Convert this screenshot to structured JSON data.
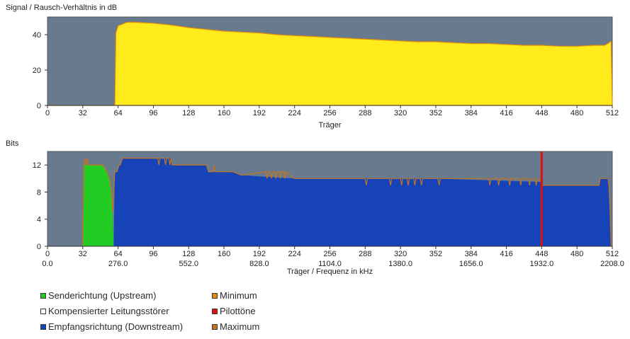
{
  "chart_data": [
    {
      "type": "area",
      "title": "Signal / Rausch-Verhältnis in dB",
      "xlabel": "Träger",
      "ylabel": "",
      "xlim": [
        0,
        512
      ],
      "ylim": [
        0,
        50
      ],
      "x_ticks": [
        0,
        32,
        64,
        96,
        128,
        160,
        192,
        224,
        256,
        288,
        320,
        352,
        384,
        416,
        448,
        480,
        512
      ],
      "y_ticks": [
        0,
        20,
        40
      ],
      "series": [
        {
          "name": "Signal/Rausch",
          "color": "#ffea1b",
          "outline_color": "#e08a10",
          "points": [
            [
              0,
              0
            ],
            [
              60,
              0
            ],
            [
              61,
              0
            ],
            [
              62,
              41
            ],
            [
              64,
              45
            ],
            [
              68,
              46
            ],
            [
              72,
              47
            ],
            [
              80,
              47
            ],
            [
              96,
              46.5
            ],
            [
              112,
              45.5
            ],
            [
              128,
              44
            ],
            [
              144,
              43
            ],
            [
              160,
              42
            ],
            [
              176,
              41.5
            ],
            [
              192,
              41
            ],
            [
              208,
              40
            ],
            [
              224,
              39.5
            ],
            [
              240,
              39
            ],
            [
              256,
              38.5
            ],
            [
              272,
              38
            ],
            [
              288,
              37.5
            ],
            [
              304,
              37
            ],
            [
              320,
              36.5
            ],
            [
              336,
              36
            ],
            [
              352,
              36
            ],
            [
              368,
              35.5
            ],
            [
              384,
              35
            ],
            [
              400,
              35
            ],
            [
              416,
              34.5
            ],
            [
              432,
              34
            ],
            [
              448,
              34
            ],
            [
              464,
              33.5
            ],
            [
              480,
              33.5
            ],
            [
              496,
              34
            ],
            [
              505,
              34
            ],
            [
              508,
              35
            ],
            [
              510,
              36
            ],
            [
              511,
              36
            ],
            [
              512,
              0
            ]
          ]
        }
      ]
    },
    {
      "type": "area",
      "title": "Bits",
      "xlabel": "Träger / Frequenz in kHz",
      "ylabel": "",
      "xlim": [
        0,
        512
      ],
      "ylim": [
        0,
        14
      ],
      "x_ticks": [
        0,
        32,
        64,
        96,
        128,
        160,
        192,
        224,
        256,
        288,
        320,
        352,
        384,
        416,
        448,
        480,
        512
      ],
      "x_freq_labels": [
        {
          "x": 0,
          "label": "0.0"
        },
        {
          "x": 64,
          "label": "276.0"
        },
        {
          "x": 128,
          "label": "552.0"
        },
        {
          "x": 192,
          "label": "828.0"
        },
        {
          "x": 256,
          "label": "1104.0"
        },
        {
          "x": 320,
          "label": "1380.0"
        },
        {
          "x": 384,
          "label": "1656.0"
        },
        {
          "x": 448,
          "label": "1932.0"
        },
        {
          "x": 512,
          "label": "2208.0"
        }
      ],
      "y_ticks": [
        0,
        4,
        8,
        12
      ],
      "series": [
        {
          "name": "Senderichtung (Upstream)",
          "color": "#22cc22",
          "points": [
            [
              32,
              0
            ],
            [
              33,
              12
            ],
            [
              34,
              12
            ],
            [
              35,
              12
            ],
            [
              36,
              12
            ],
            [
              50,
              12
            ],
            [
              52,
              11.5
            ],
            [
              54,
              11
            ],
            [
              56,
              10
            ],
            [
              58,
              8
            ],
            [
              59,
              5
            ],
            [
              60,
              0
            ]
          ]
        },
        {
          "name": "Empfangsrichtung (Downstream)",
          "color": "#1644b8",
          "points": [
            [
              60,
              0
            ],
            [
              61,
              11
            ],
            [
              63,
              11
            ],
            [
              64,
              11.5
            ],
            [
              65,
              12
            ],
            [
              66,
              12
            ],
            [
              67,
              12.5
            ],
            [
              68,
              13
            ],
            [
              100,
              13
            ],
            [
              112,
              13
            ],
            [
              113,
              12
            ],
            [
              116,
              12
            ],
            [
              144,
              12
            ],
            [
              146,
              11
            ],
            [
              160,
              11
            ],
            [
              168,
              11
            ],
            [
              176,
              10.5
            ],
            [
              224,
              10
            ],
            [
              288,
              10
            ],
            [
              352,
              10
            ],
            [
              448,
              9.5
            ],
            [
              449,
              9
            ],
            [
              460,
              9
            ],
            [
              500,
              9
            ],
            [
              501,
              10
            ],
            [
              508,
              10
            ],
            [
              509,
              9
            ],
            [
              510,
              5
            ],
            [
              511,
              0
            ]
          ]
        },
        {
          "name": "Maximum",
          "color": "#c8741c",
          "points": [
            [
              32,
              0
            ],
            [
              33,
              12
            ],
            [
              34,
              13
            ],
            [
              35,
              12
            ],
            [
              36,
              13
            ],
            [
              37,
              12
            ],
            [
              50,
              12
            ],
            [
              52,
              11.5
            ],
            [
              54,
              11
            ],
            [
              56,
              10
            ],
            [
              58,
              8
            ],
            [
              59,
              5
            ],
            [
              61,
              11
            ],
            [
              63,
              11
            ],
            [
              64,
              11.5
            ],
            [
              65,
              12
            ],
            [
              66,
              12
            ],
            [
              67,
              12.5
            ],
            [
              68,
              13
            ],
            [
              100,
              13
            ],
            [
              101,
              12
            ],
            [
              102,
              13
            ],
            [
              106,
              13
            ],
            [
              107,
              12
            ],
            [
              108,
              13
            ],
            [
              110,
              13
            ],
            [
              111,
              12
            ],
            [
              112,
              13
            ],
            [
              113,
              12
            ],
            [
              116,
              12
            ],
            [
              144,
              12
            ],
            [
              146,
              11
            ],
            [
              150,
              11
            ],
            [
              151,
              12
            ],
            [
              152,
              11
            ],
            [
              160,
              11
            ],
            [
              168,
              11
            ],
            [
              176,
              10.5
            ],
            [
              198,
              11
            ],
            [
              199,
              10
            ],
            [
              200,
              11
            ],
            [
              202,
              11
            ],
            [
              203,
              10
            ],
            [
              204,
              11
            ],
            [
              206,
              11
            ],
            [
              207,
              10
            ],
            [
              208,
              11
            ],
            [
              210,
              11
            ],
            [
              211,
              10
            ],
            [
              212,
              11
            ],
            [
              214,
              11
            ],
            [
              215,
              10
            ],
            [
              216,
              11
            ],
            [
              224,
              10
            ],
            [
              288,
              10
            ],
            [
              289,
              9
            ],
            [
              290,
              10
            ],
            [
              310,
              10
            ],
            [
              311,
              9
            ],
            [
              312,
              10
            ],
            [
              320,
              10
            ],
            [
              321,
              9
            ],
            [
              322,
              10
            ],
            [
              326,
              10
            ],
            [
              327,
              9
            ],
            [
              328,
              10
            ],
            [
              332,
              10
            ],
            [
              333,
              9
            ],
            [
              334,
              10
            ],
            [
              338,
              10
            ],
            [
              339,
              9
            ],
            [
              340,
              10
            ],
            [
              354,
              10
            ],
            [
              355,
              9
            ],
            [
              356,
              10
            ],
            [
              400,
              10
            ],
            [
              401,
              9
            ],
            [
              402,
              10
            ],
            [
              408,
              10
            ],
            [
              409,
              9
            ],
            [
              410,
              10
            ],
            [
              418,
              10
            ],
            [
              419,
              9
            ],
            [
              420,
              10
            ],
            [
              428,
              10
            ],
            [
              429,
              9
            ],
            [
              430,
              10
            ],
            [
              436,
              10
            ],
            [
              437,
              9
            ],
            [
              438,
              10
            ],
            [
              442,
              10
            ],
            [
              443,
              9
            ],
            [
              444,
              10
            ],
            [
              448,
              9.5
            ],
            [
              449,
              9
            ],
            [
              500,
              9
            ],
            [
              501,
              10
            ],
            [
              508,
              10
            ],
            [
              509,
              9
            ],
            [
              510,
              5
            ],
            [
              511,
              0
            ]
          ]
        },
        {
          "name": "Pilottöne",
          "color": "#e01010",
          "points": [
            [
              448,
              0
            ],
            [
              448,
              14
            ]
          ]
        }
      ]
    }
  ],
  "legend": {
    "items": [
      {
        "label": "Senderichtung (Upstream)",
        "color": "#22cc22"
      },
      {
        "label": "Kompensierter Leitungsstörer",
        "color": "#ffffff"
      },
      {
        "label": "Empfangsrichtung (Downstream)",
        "color": "#1644b8"
      },
      {
        "label": "Minimum",
        "color": "#e08a10"
      },
      {
        "label": "Pilottöne",
        "color": "#e01010"
      },
      {
        "label": "Maximum",
        "color": "#c8741c"
      }
    ]
  },
  "colors": {
    "plot_background": "#677a8e",
    "axis": "#333333"
  }
}
